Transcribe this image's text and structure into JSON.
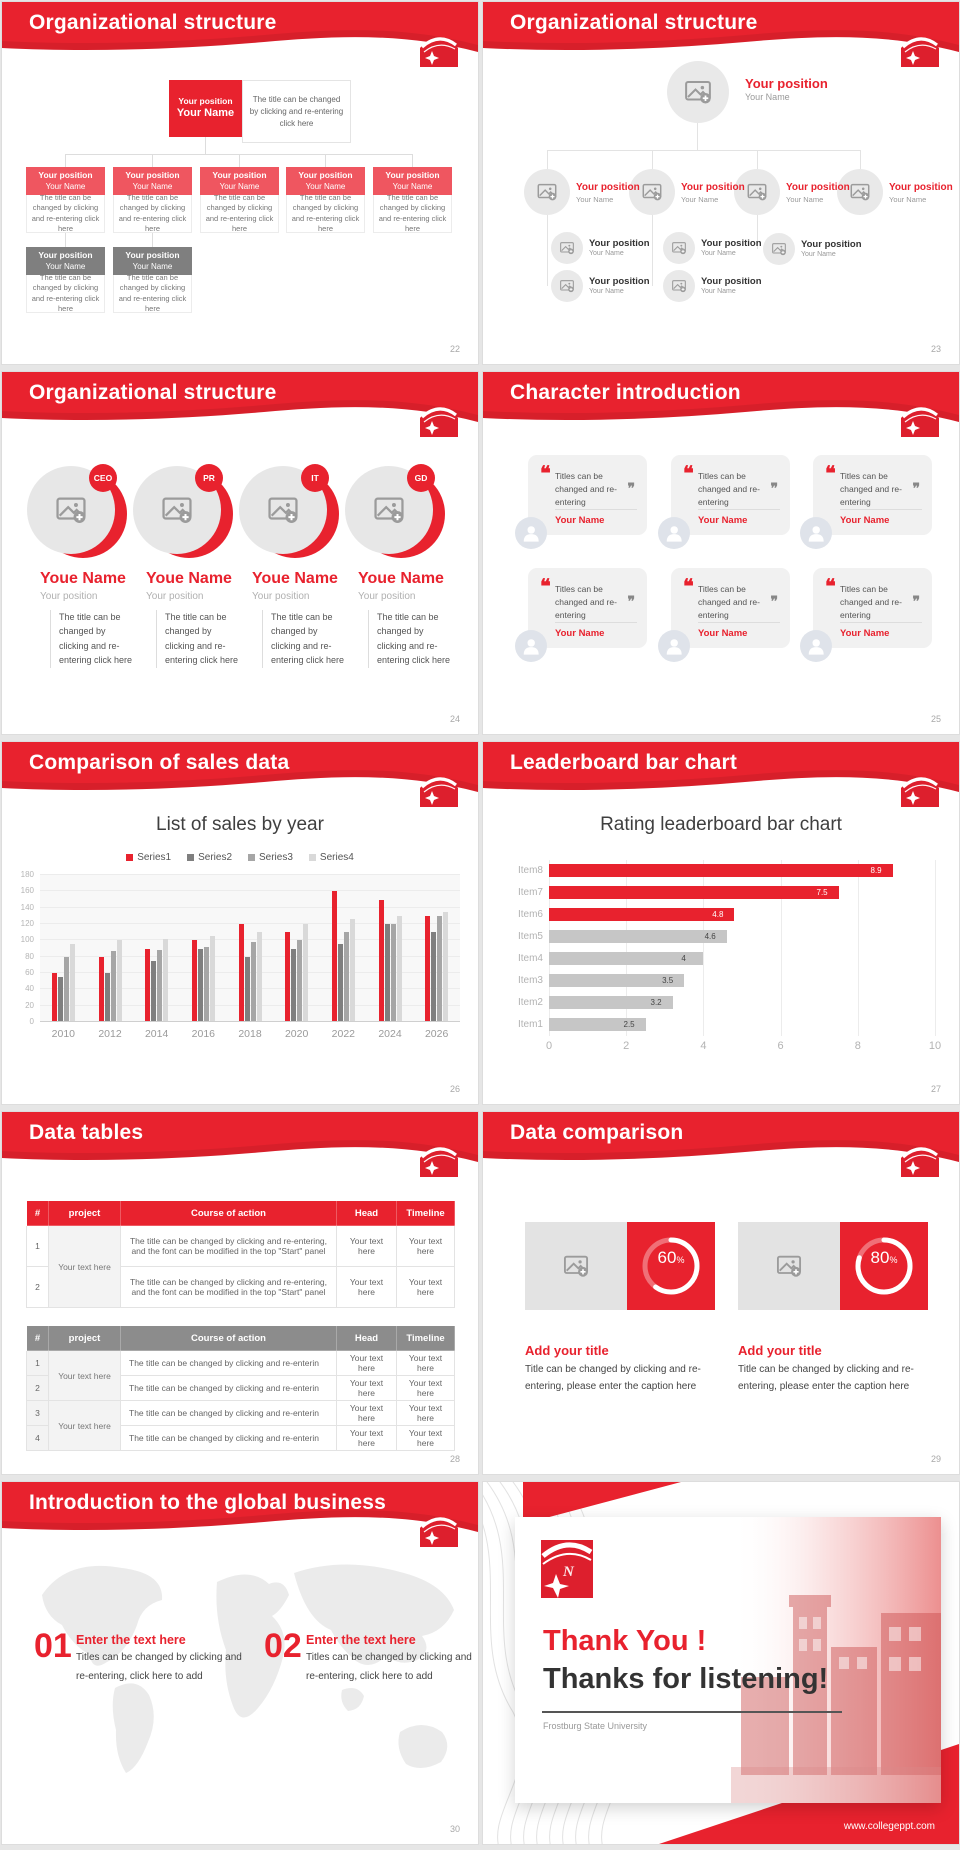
{
  "global": {
    "accent_red": "#e8222e",
    "light_red": "#ef5660",
    "box_gray": "#7f7f7f",
    "site": "www.collegeppt.com"
  },
  "slides": {
    "org1": {
      "title": "Organizational structure",
      "page": "22",
      "root": {
        "position": "Your position",
        "name": "Your Name"
      },
      "root_note": "The title can be changed by clicking and re-entering click here",
      "box": {
        "position": "Your position",
        "name": "Your Name"
      },
      "caption": "The title can be changed by clicking and re-entering click here"
    },
    "org2": {
      "title": "Organizational structure",
      "page": "23",
      "node": {
        "position": "Your position",
        "name": "Your Name"
      }
    },
    "org3": {
      "title": "Organizational structure",
      "page": "24",
      "badges": [
        "CEO",
        "PR",
        "IT",
        "GD"
      ],
      "member_name": "Youe Name",
      "member_position": "Your position",
      "caption": "The title can be changed by clicking and re-entering click here"
    },
    "chars": {
      "title": "Character introduction",
      "page": "25",
      "card": {
        "quote": "Titles can be changed and re-entering",
        "name": "Your Name"
      }
    },
    "sales": {
      "title": "Comparison of sales data",
      "page": "26"
    },
    "leaderboard": {
      "title": "Leaderboard bar chart",
      "page": "27"
    },
    "tables": {
      "title": "Data tables",
      "page": "28",
      "headers": [
        "#",
        "project",
        "Course of action",
        "Head",
        "Timeline"
      ],
      "t1": {
        "project": "Your text here",
        "rows": [
          {
            "num": "1",
            "action": "The title can be changed by clicking and re-entering, and the font can be modified in the top \"Start\" panel",
            "head": "Your text here",
            "timeline": "Your text here"
          },
          {
            "num": "2",
            "action": "The title can be changed by clicking and re-entering, and the font can be modified in the top \"Start\" panel",
            "head": "Your text here",
            "timeline": "Your text here"
          }
        ]
      },
      "t2": {
        "projects": [
          "Your text here",
          "Your text here"
        ],
        "rows": [
          {
            "num": "1",
            "action": "The title can be changed by clicking and re-enterin",
            "head": "Your text here",
            "timeline": "Your text here"
          },
          {
            "num": "2",
            "action": "The title can be changed by clicking and re-enterin",
            "head": "Your text here",
            "timeline": "Your text here"
          },
          {
            "num": "3",
            "action": "The title can be changed by clicking and re-enterin",
            "head": "Your text here",
            "timeline": "Your text here"
          },
          {
            "num": "4",
            "action": "The title can be changed by clicking and re-enterin",
            "head": "Your text here",
            "timeline": "Your text here"
          }
        ]
      }
    },
    "comparison": {
      "title": "Data comparison",
      "page": "29",
      "block_title": "Add your title",
      "block_caption": "Title can be changed by clicking and re-entering, please enter the caption here"
    },
    "global_business": {
      "title": "Introduction to the global business",
      "page": "30",
      "nums": [
        "01",
        "02"
      ],
      "item_title": "Enter the text here",
      "item_caption": "Titles can be changed by clicking and re-entering, click here to add"
    },
    "thanks": {
      "title_red": "Thank You !",
      "title_dark": "Thanks for listening!",
      "subtitle": "Frostburg State University",
      "site": "www.collegeppt.com"
    }
  },
  "chart_data": [
    {
      "type": "bar",
      "title": "List of sales by year",
      "categories": [
        "2010",
        "2012",
        "2014",
        "2016",
        "2018",
        "2020",
        "2022",
        "2024",
        "2026"
      ],
      "series": [
        {
          "name": "Series1",
          "color": "#e8222e",
          "values": [
            60,
            80,
            90,
            100,
            120,
            110,
            160,
            150,
            130
          ]
        },
        {
          "name": "Series2",
          "color": "#7f7f7f",
          "values": [
            55,
            60,
            75,
            90,
            80,
            90,
            96,
            120,
            110
          ]
        },
        {
          "name": "Series3",
          "color": "#a6a6a6",
          "values": [
            80,
            87,
            88,
            92,
            98,
            100,
            110,
            120,
            130
          ]
        },
        {
          "name": "Series4",
          "color": "#d9d9d9",
          "values": [
            95,
            100,
            102,
            105,
            110,
            120,
            126,
            130,
            135
          ]
        }
      ],
      "ylim": [
        0,
        180
      ],
      "ytick_step": 20,
      "legend_position": "top",
      "grid": true
    },
    {
      "type": "bar",
      "orientation": "horizontal",
      "title": "Rating leaderboard bar chart",
      "categories": [
        "Item8",
        "Item7",
        "Item6",
        "Item5",
        "Item4",
        "Item3",
        "Item2",
        "Item1"
      ],
      "values": [
        8.9,
        7.5,
        4.8,
        4.6,
        4,
        3.5,
        3.2,
        2.5
      ],
      "bar_colors": [
        "red",
        "red",
        "red",
        "gray",
        "gray",
        "gray",
        "gray",
        "gray"
      ],
      "xlim": [
        0,
        10
      ],
      "xtick_step": 2,
      "grid": true
    },
    {
      "type": "donut",
      "series": [
        {
          "label": "Add your title",
          "value": 60
        },
        {
          "label": "Add your title",
          "value": 80
        }
      ],
      "unit": "%"
    }
  ]
}
